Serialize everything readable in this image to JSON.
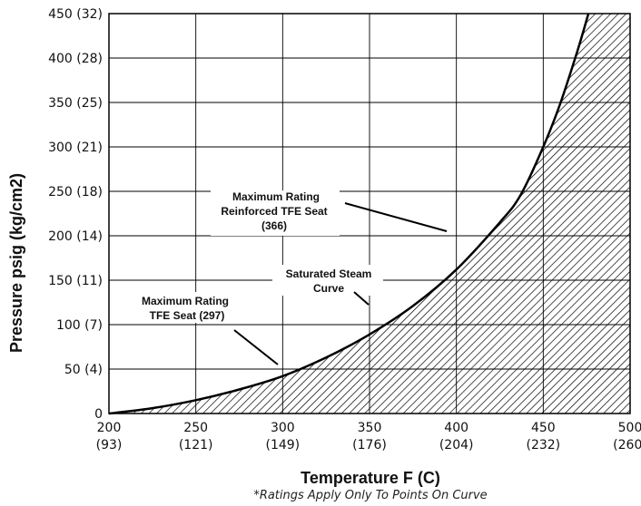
{
  "chart_data": {
    "type": "line",
    "title": "",
    "xlabel": "Temperature F (C)",
    "ylabel": "Pressure psig (kg/cm2)",
    "footnote": "*Ratings Apply Only To Points On Curve",
    "xlim": [
      200,
      500
    ],
    "ylim": [
      0,
      450
    ],
    "grid": true,
    "x_ticks": [
      {
        "value": 200,
        "label": "200",
        "sub": "(93)"
      },
      {
        "value": 250,
        "label": "250",
        "sub": "(121)"
      },
      {
        "value": 300,
        "label": "300",
        "sub": "(149)"
      },
      {
        "value": 350,
        "label": "350",
        "sub": "(176)"
      },
      {
        "value": 400,
        "label": "400",
        "sub": "(204)"
      },
      {
        "value": 450,
        "label": "450",
        "sub": "(232)"
      },
      {
        "value": 500,
        "label": "500",
        "sub": "(260)"
      }
    ],
    "y_ticks": [
      {
        "value": 0,
        "label": "0"
      },
      {
        "value": 50,
        "label": "50 (4)"
      },
      {
        "value": 100,
        "label": "100 (7)"
      },
      {
        "value": 150,
        "label": "150 (11)"
      },
      {
        "value": 200,
        "label": "200 (14)"
      },
      {
        "value": 250,
        "label": "250 (18)"
      },
      {
        "value": 300,
        "label": "300 (21)"
      },
      {
        "value": 350,
        "label": "350 (25)"
      },
      {
        "value": 400,
        "label": "400 (28)"
      },
      {
        "value": 450,
        "label": "450 (32)"
      }
    ],
    "series": [
      {
        "name": "Saturated Steam Curve",
        "x": [
          200,
          225,
          250,
          275,
          300,
          325,
          350,
          375,
          400,
          425,
          437,
          450,
          460,
          470,
          476
        ],
        "y": [
          0,
          6,
          15,
          27,
          42,
          63,
          89,
          121,
          162,
          215,
          246,
          300,
          350,
          410,
          450
        ],
        "hatched_area": "right of curve"
      }
    ],
    "annotations": [
      {
        "lines": [
          "Maximum Rating",
          "Reinforced TFE Seat",
          "(366)"
        ]
      },
      {
        "lines": [
          "Saturated Steam",
          "Curve"
        ]
      },
      {
        "lines": [
          "Maximum Rating",
          "TFE Seat (297)"
        ]
      }
    ]
  }
}
